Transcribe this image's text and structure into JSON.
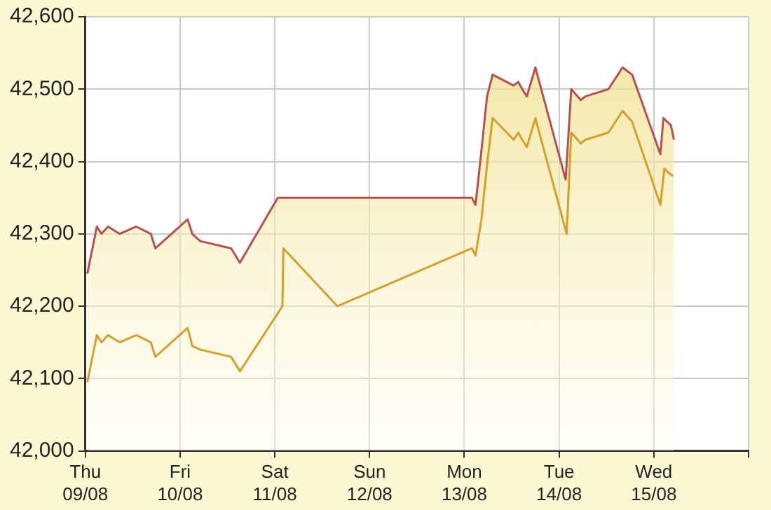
{
  "chart_data": {
    "type": "line",
    "xlim": [
      "--08-09",
      "--08-16"
    ],
    "xticks": [
      {
        "value": "--08-09",
        "label": "Thu\n09/08"
      },
      {
        "value": "--08-10",
        "label": "Fri\n10/08"
      },
      {
        "value": "--08-11",
        "label": "Sat\n11/08"
      },
      {
        "value": "--08-12",
        "label": "Sun\n12/08"
      },
      {
        "value": "--08-13",
        "label": "Mon\n13/08"
      },
      {
        "value": "--08-14",
        "label": "Tue\n14/08"
      },
      {
        "value": "--08-15",
        "label": "Wed\n15/08"
      },
      {
        "value": "--08-16",
        "label": null
      }
    ],
    "ylim": [
      42000,
      42600
    ],
    "yticks": [
      {
        "value": 42000,
        "label": "42,000"
      },
      {
        "value": 42100,
        "label": "42,100"
      },
      {
        "value": 42200,
        "label": "42,200"
      },
      {
        "value": 42300,
        "label": "42,300"
      },
      {
        "value": 42400,
        "label": "42,400"
      },
      {
        "value": 42500,
        "label": "42,500"
      },
      {
        "value": 42600,
        "label": "42,600"
      }
    ],
    "grid": true,
    "series": [
      {
        "type": "area",
        "color": "#b5514e",
        "x": [
          "--08-09T00:30",
          "--08-09T02:55",
          "--08-09T04:05",
          "--08-09T05:45",
          "--08-09T08:40",
          "--08-09T12:55",
          "--08-09T16:35",
          "--08-09T17:45",
          "--08-10T01:55",
          "--08-10T03:05",
          "--08-10T05:05",
          "--08-10T12:55",
          "--08-10T15:10",
          "--08-11T00:45",
          "--08-13T01:55",
          "--08-13T02:50",
          "--08-13T04:20",
          "--08-13T05:45",
          "--08-13T07:10",
          "--08-13T12:30",
          "--08-13T13:40",
          "--08-13T14:40",
          "--08-13T15:50",
          "--08-13T18:00",
          "--08-14T01:40",
          "--08-14T03:05",
          "--08-14T05:30",
          "--08-14T06:40",
          "--08-14T12:30",
          "--08-14T16:05",
          "--08-14T18:30",
          "--08-15T01:40",
          "--08-15T02:25",
          "--08-15T04:20",
          "--08-15T05:05"
        ],
        "values": [
          42245,
          42310,
          42300,
          42310,
          42300,
          42310,
          42300,
          42280,
          42320,
          42300,
          42290,
          42280,
          42260,
          42350,
          42350,
          42340,
          42415,
          42490,
          42520,
          42505,
          42510,
          42500,
          42490,
          42530,
          42375,
          42500,
          42485,
          42490,
          42500,
          42530,
          42520,
          42410,
          42460,
          42450,
          42430
        ]
      },
      {
        "type": "line",
        "color": "#d4a02a",
        "x": [
          "--08-09T00:30",
          "--08-09T02:55",
          "--08-09T04:05",
          "--08-09T05:45",
          "--08-09T08:40",
          "--08-09T12:55",
          "--08-09T16:35",
          "--08-09T17:45",
          "--08-10T01:55",
          "--08-10T03:05",
          "--08-10T05:05",
          "--08-10T12:55",
          "--08-10T15:10",
          "--08-11T01:55",
          "--08-11T02:10",
          "--08-11T15:50",
          "--08-13T01:55",
          "--08-13T02:50",
          "--08-13T04:20",
          "--08-13T05:45",
          "--08-13T07:10",
          "--08-13T12:30",
          "--08-13T13:40",
          "--08-13T14:40",
          "--08-13T15:50",
          "--08-13T18:00",
          "--08-14T01:55",
          "--08-14T03:05",
          "--08-14T05:30",
          "--08-14T06:40",
          "--08-14T12:30",
          "--08-14T16:05",
          "--08-14T18:30",
          "--08-15T01:40",
          "--08-15T02:40",
          "--08-15T03:35",
          "--08-15T04:50"
        ],
        "values": [
          42095,
          42160,
          42150,
          42160,
          42150,
          42160,
          42150,
          42130,
          42170,
          42145,
          42140,
          42130,
          42110,
          42200,
          42280,
          42200,
          42280,
          42270,
          42320,
          42395,
          42460,
          42430,
          42440,
          42430,
          42420,
          42460,
          42300,
          42440,
          42425,
          42430,
          42440,
          42470,
          42455,
          42340,
          42390,
          42385,
          42380
        ]
      }
    ]
  }
}
